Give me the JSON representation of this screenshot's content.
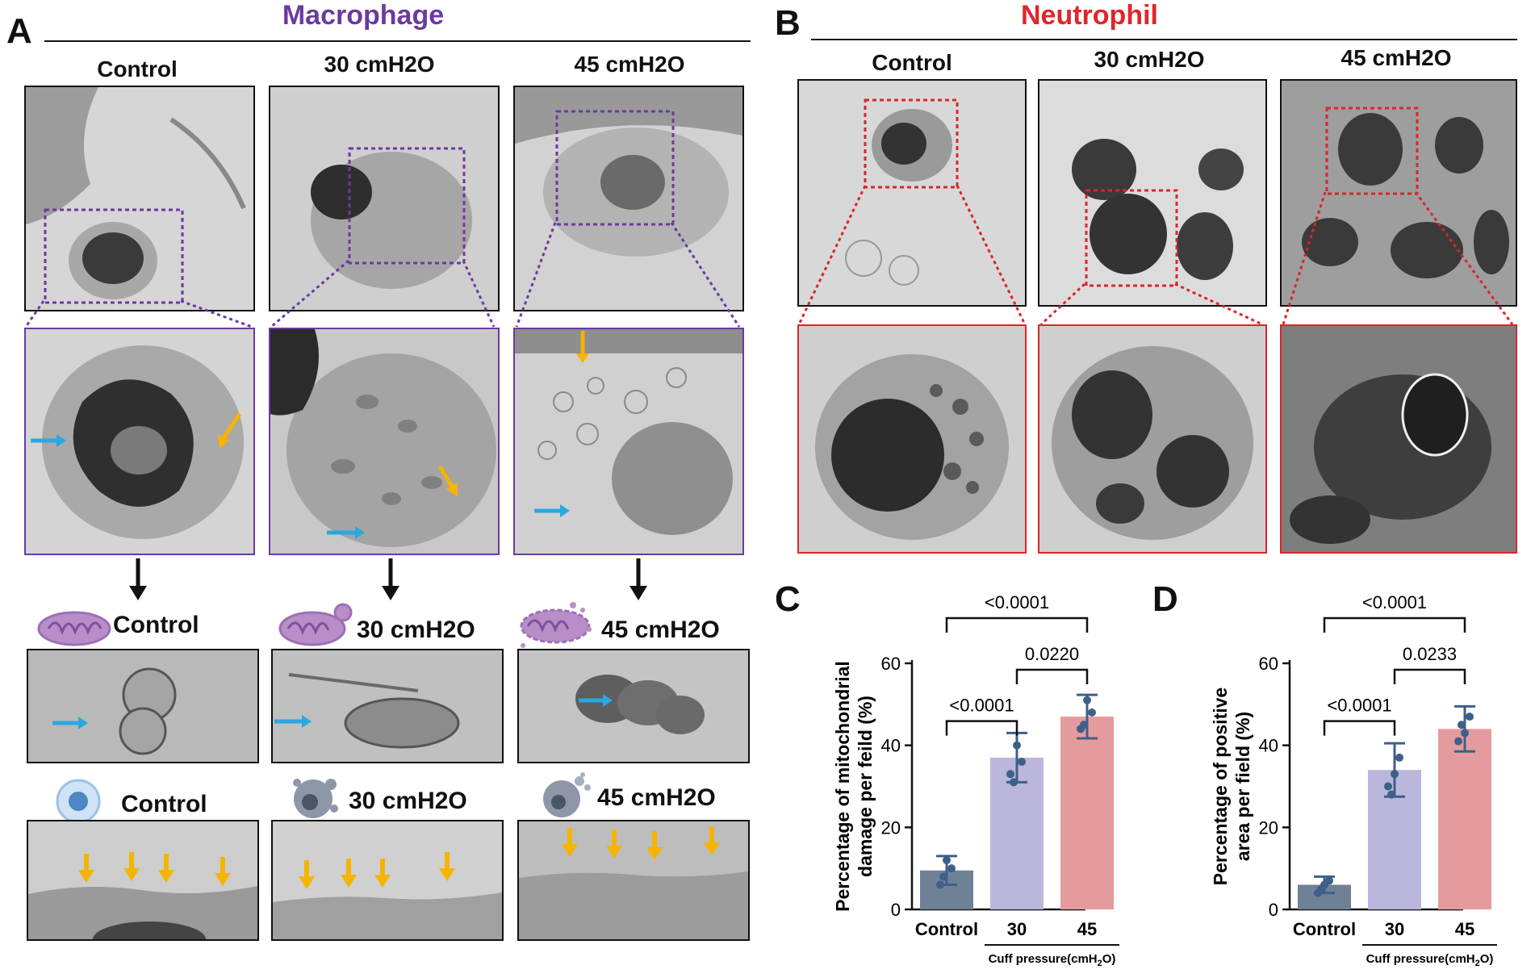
{
  "panels": {
    "A": {
      "letter": "A",
      "title": "Macrophage",
      "title_color": "#6b3aa0",
      "columns": [
        "Control",
        "30 cmH2O",
        "45 cmH2O"
      ],
      "mito_labels": [
        "Control",
        "30 cmH2O",
        "45 cmH2O"
      ],
      "cell_labels": [
        "Control",
        "30 cmH2O",
        "45 cmH2O"
      ]
    },
    "B": {
      "letter": "B",
      "title": "Neutrophil",
      "title_color": "#e0262b",
      "columns": [
        "Control",
        "30 cmH2O",
        "45 cmH2O"
      ]
    },
    "C": {
      "letter": "C"
    },
    "D": {
      "letter": "D"
    }
  },
  "colors": {
    "control": "#6f8196",
    "p30": "#bab6dc",
    "p45": "#e59b9d",
    "points": "#3e5f8a",
    "arrow_blue": "#2aa8e0",
    "arrow_yellow": "#f5b400"
  },
  "chart_data": [
    {
      "type": "bar",
      "panel": "C",
      "categories": [
        "Control",
        "30",
        "45"
      ],
      "values": [
        9.5,
        37,
        47
      ],
      "error": [
        3.5,
        6,
        5.3
      ],
      "points": [
        [
          6,
          10,
          12,
          8
        ],
        [
          33,
          36,
          40,
          31
        ],
        [
          44,
          48,
          51,
          45
        ]
      ],
      "ylabel": "Percentage of mitochondrial damage per feild (%)",
      "xlabel": "Cuff pressure(cmH2O)",
      "ylim": [
        0,
        60
      ],
      "yticks": [
        0,
        20,
        40,
        60
      ],
      "comparisons": [
        {
          "from": 0,
          "to": 1,
          "label": "<0.0001"
        },
        {
          "from": 1,
          "to": 2,
          "label": "0.0220"
        },
        {
          "from": 0,
          "to": 2,
          "label": "<0.0001"
        }
      ]
    },
    {
      "type": "bar",
      "panel": "D",
      "categories": [
        "Control",
        "30",
        "45"
      ],
      "values": [
        6,
        34,
        44
      ],
      "error": [
        2,
        6.5,
        5.5
      ],
      "points": [
        [
          4,
          7,
          6,
          5
        ],
        [
          30,
          37,
          33,
          28
        ],
        [
          41,
          47,
          43,
          45
        ]
      ],
      "ylabel": "Percentage of positive area per field (%)",
      "xlabel": "Cuff pressure(cmH2O)",
      "ylim": [
        0,
        60
      ],
      "yticks": [
        0,
        20,
        40,
        60
      ],
      "comparisons": [
        {
          "from": 0,
          "to": 1,
          "label": "<0.0001"
        },
        {
          "from": 1,
          "to": 2,
          "label": "0.0233"
        },
        {
          "from": 0,
          "to": 2,
          "label": "<0.0001"
        }
      ]
    }
  ]
}
